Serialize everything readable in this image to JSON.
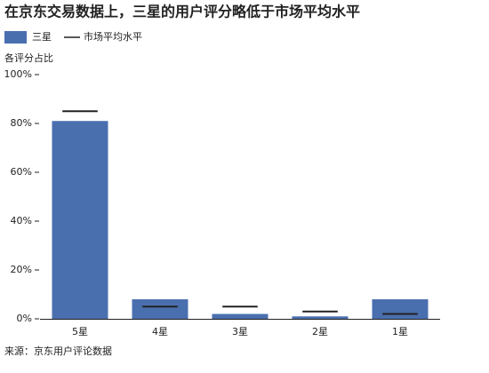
{
  "chart_data": {
    "type": "bar",
    "title": "在京东交易数据上，三星的用户评分略低于市场平均水平",
    "y_label": "各评分占比",
    "source": "来源：京东用户评论数据",
    "categories": [
      "5星",
      "4星",
      "3星",
      "2星",
      "1星"
    ],
    "series": [
      {
        "name": "三星",
        "type": "bar",
        "color": "#4a6fae",
        "values": [
          81,
          8,
          2,
          1,
          8
        ]
      },
      {
        "name": "市场平均水平",
        "type": "marker",
        "color": "#222222",
        "values": [
          85,
          5,
          5,
          3,
          2
        ]
      }
    ],
    "ylim": [
      0,
      100
    ],
    "yticks": [
      {
        "value": 0,
        "label": "0%"
      },
      {
        "value": 20,
        "label": "20%"
      },
      {
        "value": 40,
        "label": "40%"
      },
      {
        "value": 60,
        "label": "60%"
      },
      {
        "value": 80,
        "label": "80%"
      },
      {
        "value": 100,
        "label": "100%"
      }
    ]
  }
}
